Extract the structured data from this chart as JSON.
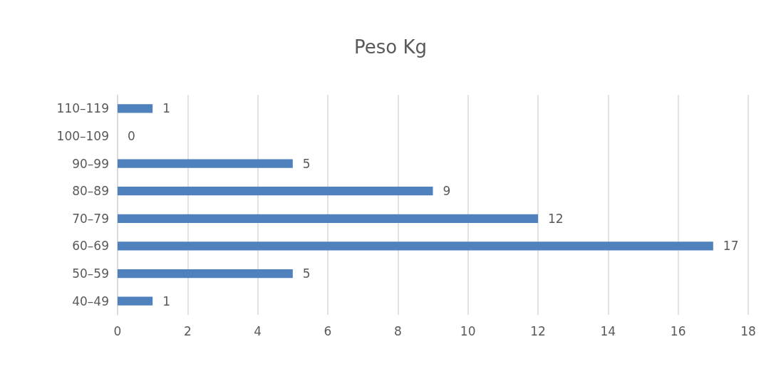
{
  "chart_data": {
    "type": "bar",
    "orientation": "horizontal",
    "title": "Peso Kg",
    "categories": [
      "110–119",
      "100–109",
      "90–99",
      "80–89",
      "70–79",
      "60–69",
      "50–59",
      "40–49"
    ],
    "values": [
      1,
      0,
      5,
      9,
      12,
      17,
      5,
      1
    ],
    "color": "#4f81bd",
    "xlim": [
      0,
      18
    ],
    "xticks": [
      0,
      2,
      4,
      6,
      8,
      10,
      12,
      14,
      16,
      18
    ],
    "grid": "x",
    "data_labels": true
  }
}
